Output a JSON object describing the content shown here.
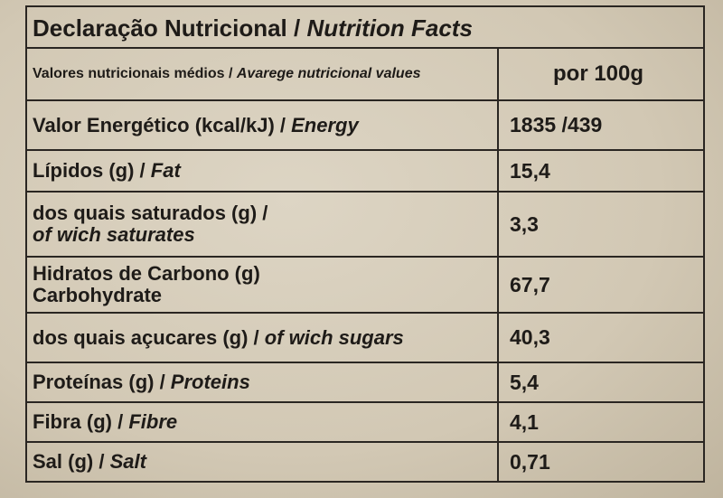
{
  "title": {
    "pt": "Declaração Nutricional / ",
    "en": "Nutrition Facts"
  },
  "header": {
    "pt": "Valores nutricionais médios / ",
    "en": "Avarege nutricional values",
    "value": "por 100g"
  },
  "rows": [
    {
      "pt": "Valor Energético (kcal/kJ) / ",
      "en": "Energy",
      "value": "1835 /439"
    },
    {
      "pt": "Lípidos (g) / ",
      "en": "Fat",
      "value": "15,4"
    },
    {
      "pt": "dos quais saturados (g) /",
      "en": "of wich saturates",
      "value": "3,3"
    },
    {
      "pt": "Hidratos de Carbono (g)",
      "en": "Carbohydrate",
      "value": "67,7"
    },
    {
      "pt": "dos quais açucares (g) / ",
      "en": "of wich sugars",
      "value": "40,3"
    },
    {
      "pt": "Proteínas (g) / ",
      "en": "Proteins",
      "value": "5,4"
    },
    {
      "pt": "Fibra (g) / ",
      "en": "Fibre",
      "value": "4,1"
    },
    {
      "pt": "Sal (g) / ",
      "en": "Salt",
      "value": "0,71"
    }
  ]
}
